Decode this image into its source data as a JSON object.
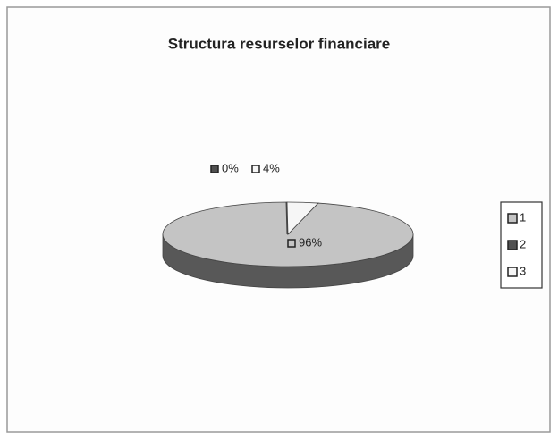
{
  "chart_data": {
    "type": "pie",
    "title": "Structura resurselor financiare",
    "categories": [
      "1",
      "2",
      "3"
    ],
    "values": [
      96,
      0,
      4
    ],
    "value_labels": [
      "96%",
      "0%",
      "4%"
    ],
    "colors": [
      "#c4c4c4",
      "#505050",
      "#f6f6f6"
    ],
    "legend": "right"
  }
}
